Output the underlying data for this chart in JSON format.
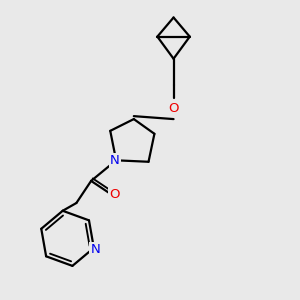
{
  "background_color": "#e9e9e9",
  "bond_color": "#000000",
  "N_color": "#0000ee",
  "O_color": "#ee0000",
  "line_width": 1.6,
  "figsize": [
    3.0,
    3.0
  ],
  "dpi": 100,
  "xlim": [
    0,
    10
  ],
  "ylim": [
    0,
    10
  ],
  "font_size": 9.5
}
